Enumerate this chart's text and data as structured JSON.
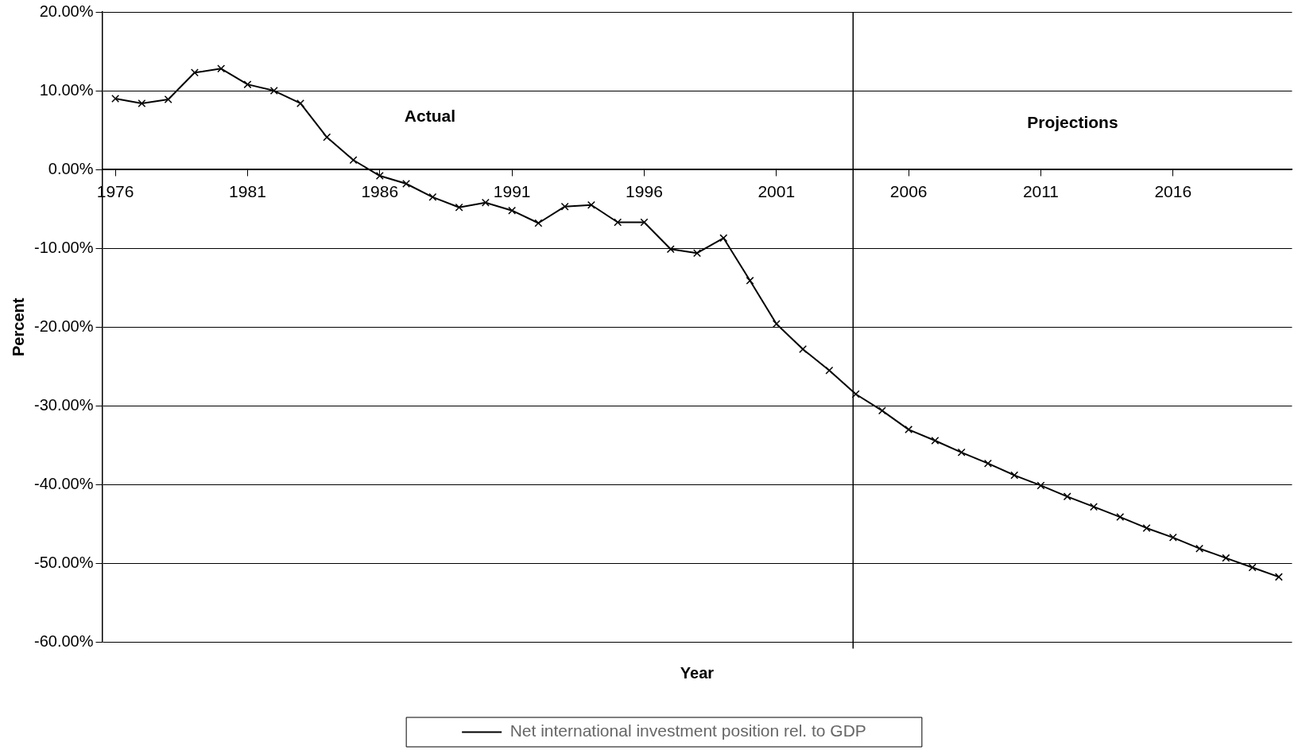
{
  "chart_data": {
    "type": "line",
    "xlabel": "Year",
    "ylabel": "Percent",
    "x": [
      1976,
      1977,
      1978,
      1979,
      1980,
      1981,
      1982,
      1983,
      1984,
      1985,
      1986,
      1987,
      1988,
      1989,
      1990,
      1991,
      1992,
      1993,
      1994,
      1995,
      1996,
      1997,
      1998,
      1999,
      2000,
      2001,
      2002,
      2003,
      2004,
      2005,
      2006,
      2007,
      2008,
      2009,
      2010,
      2011,
      2012,
      2013,
      2014,
      2015,
      2016,
      2017,
      2018,
      2019,
      2020
    ],
    "series": [
      {
        "name": "Net international investment position rel. to GDP",
        "color": "#000000",
        "values": [
          9.0,
          8.4,
          8.9,
          12.3,
          12.8,
          10.8,
          10.0,
          8.4,
          4.1,
          1.2,
          -0.8,
          -1.8,
          -3.5,
          -4.8,
          -4.2,
          -5.2,
          -6.8,
          -4.7,
          -4.5,
          -6.7,
          -6.7,
          -10.1,
          -10.6,
          -8.7,
          -14.1,
          -19.6,
          -22.8,
          -25.5,
          -28.5,
          -30.6,
          -33.0,
          -34.4,
          -35.9,
          -37.3,
          -38.8,
          -40.1,
          -41.5,
          -42.8,
          -44.1,
          -45.5,
          -46.7,
          -48.1,
          -49.3,
          -50.5,
          -51.7
        ]
      }
    ],
    "xlim": [
      1975.5,
      2020.5
    ],
    "xticks": [
      1976,
      1981,
      1986,
      1991,
      1996,
      2001,
      2006,
      2011,
      2016
    ],
    "ylim": [
      -60,
      20
    ],
    "yticks": [
      {
        "value": -60,
        "label": "-60.00%"
      },
      {
        "value": -50,
        "label": "-50.00%"
      },
      {
        "value": -40,
        "label": "-40.00%"
      },
      {
        "value": -30,
        "label": "-30.00%"
      },
      {
        "value": -20,
        "label": "-20.00%"
      },
      {
        "value": -10,
        "label": "-10.00%"
      },
      {
        "value": 0,
        "label": "0.00%"
      },
      {
        "value": 10,
        "label": "10.00%"
      },
      {
        "value": 20,
        "label": "20.00%"
      }
    ],
    "ref_lines": [
      {
        "axis": "x",
        "value": 2003.9,
        "color": "#000000"
      }
    ],
    "annotations": [
      "Actual",
      "Projections"
    ],
    "grid": "y",
    "legend": "bottom",
    "marker": "cross",
    "line_style": "solid"
  }
}
